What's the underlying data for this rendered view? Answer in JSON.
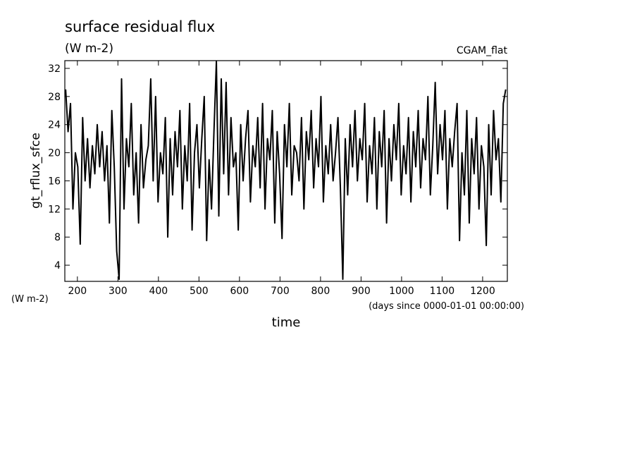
{
  "chart_data": {
    "type": "line",
    "title": "surface residual flux",
    "subtitle": "(W m-2)",
    "annotation": "CGAM_flat",
    "ylabel": "gt_rflux_sfce",
    "y_units": "(W m-2)",
    "xlabel": "time",
    "x_units": "(days since 0000-01-01 00:00:00)",
    "color": "#000000",
    "xlim": [
      169,
      1261
    ],
    "ylim": [
      1.7,
      33.1
    ],
    "xticks": [
      200,
      300,
      400,
      500,
      600,
      700,
      800,
      900,
      1000,
      1100,
      1200
    ],
    "yticks": [
      4,
      8,
      12,
      16,
      20,
      24,
      28,
      32
    ],
    "x": [
      171,
      177,
      183,
      189,
      195,
      201,
      207,
      213,
      219,
      225,
      231,
      237,
      243,
      249,
      255,
      261,
      267,
      273,
      279,
      285,
      291,
      297,
      303,
      309,
      315,
      321,
      327,
      333,
      339,
      345,
      351,
      357,
      363,
      369,
      375,
      381,
      387,
      393,
      399,
      405,
      411,
      417,
      423,
      429,
      435,
      441,
      447,
      453,
      459,
      465,
      471,
      477,
      483,
      489,
      495,
      501,
      507,
      513,
      519,
      525,
      531,
      537,
      543,
      549,
      555,
      561,
      567,
      573,
      579,
      585,
      591,
      597,
      603,
      609,
      615,
      621,
      627,
      633,
      639,
      645,
      651,
      657,
      663,
      669,
      675,
      681,
      687,
      693,
      699,
      705,
      711,
      717,
      723,
      729,
      735,
      741,
      747,
      753,
      759,
      765,
      771,
      777,
      783,
      789,
      795,
      801,
      807,
      813,
      819,
      825,
      831,
      837,
      843,
      849,
      855,
      861,
      867,
      873,
      879,
      885,
      891,
      897,
      903,
      909,
      915,
      921,
      927,
      933,
      939,
      945,
      951,
      957,
      963,
      969,
      975,
      981,
      987,
      993,
      999,
      1005,
      1011,
      1017,
      1023,
      1029,
      1035,
      1041,
      1047,
      1053,
      1059,
      1065,
      1071,
      1077,
      1083,
      1089,
      1095,
      1101,
      1107,
      1113,
      1119,
      1125,
      1131,
      1137,
      1143,
      1149,
      1155,
      1161,
      1167,
      1173,
      1179,
      1185,
      1191,
      1197,
      1203,
      1209,
      1215,
      1221,
      1227,
      1233,
      1239,
      1245,
      1251,
      1257
    ],
    "values": [
      29,
      23,
      27,
      12,
      20,
      18,
      7,
      25,
      16,
      22,
      15,
      21,
      17,
      24,
      18,
      23,
      16,
      21,
      10,
      26,
      18,
      6,
      2,
      30.5,
      12,
      22,
      18,
      27,
      14,
      20,
      10,
      24,
      15,
      19,
      21,
      30.5,
      16,
      28,
      13,
      20,
      17,
      25,
      8,
      22,
      14,
      23,
      18,
      26,
      12,
      21,
      16,
      27,
      9,
      20,
      24,
      15,
      22,
      28,
      7.5,
      19,
      12,
      23,
      33,
      11,
      30.5,
      17,
      30,
      14,
      25,
      18,
      20,
      9,
      24,
      16,
      22,
      26,
      13,
      21,
      18,
      25,
      15,
      27,
      12,
      22,
      19,
      26,
      10,
      23,
      17,
      7.8,
      24,
      18,
      27,
      14,
      21,
      20,
      16,
      25,
      12,
      23,
      19,
      26,
      15,
      22,
      18,
      28,
      13,
      21,
      17,
      24,
      16,
      20,
      25,
      15,
      2,
      22,
      14,
      24,
      18,
      26,
      16,
      22,
      19,
      27,
      13,
      21,
      17,
      25,
      12,
      23,
      18,
      26,
      10,
      22,
      16,
      24,
      19,
      27,
      14,
      21,
      17,
      25,
      13,
      23,
      18,
      26,
      15,
      22,
      19,
      28,
      14,
      21,
      30,
      17,
      24,
      19,
      26,
      12,
      22,
      18,
      23,
      27,
      7.5,
      20,
      14,
      26,
      10,
      22,
      17,
      25,
      12,
      21,
      18,
      6.8,
      24,
      14,
      26,
      19,
      22,
      13,
      27,
      29
    ]
  }
}
